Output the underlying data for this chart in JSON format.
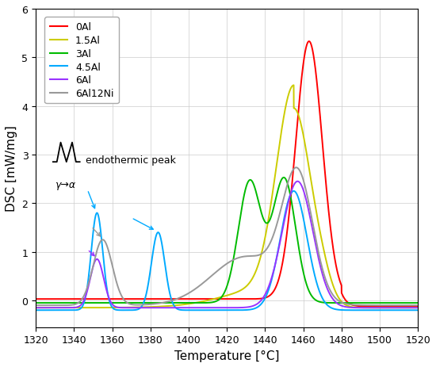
{
  "title": "",
  "xlabel": "Temperature [°C]",
  "ylabel": "DSC [mW/mg]",
  "xlim": [
    1320,
    1520
  ],
  "ylim": [
    -0.55,
    6.0
  ],
  "xticks": [
    1320,
    1340,
    1360,
    1380,
    1400,
    1420,
    1440,
    1460,
    1480,
    1500,
    1520
  ],
  "yticks": [
    0,
    1,
    2,
    3,
    4,
    5,
    6
  ],
  "legend_labels": [
    "0Al",
    "1.5Al",
    "3Al",
    "4.5Al",
    "6Al",
    "6Al12Ni"
  ],
  "line_colors": [
    "#ff0000",
    "#cccc00",
    "#00bb00",
    "#00aaff",
    "#9933ff",
    "#999999"
  ],
  "annotation_endothermic": "endothermic peak",
  "annotation_gamma": "γ→α",
  "background_color": "#ffffff",
  "grid_color": "#cccccc"
}
